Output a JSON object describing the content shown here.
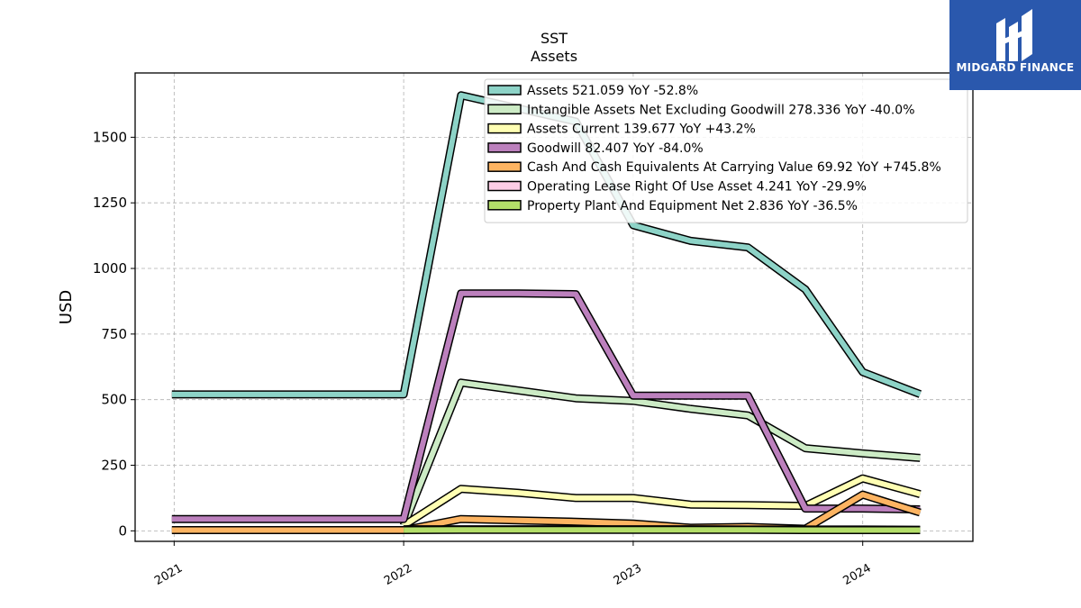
{
  "chart_data": {
    "type": "line",
    "title": "SST",
    "subtitle": "Assets",
    "ylabel": "USD",
    "xlabel": "",
    "xlim": [
      2020.83,
      2024.48
    ],
    "ylim": [
      -40,
      1745
    ],
    "x_ticks": [
      "2021",
      "2022",
      "2023",
      "2024"
    ],
    "x_tick_values": [
      2021,
      2022,
      2023,
      2024
    ],
    "y_ticks": [
      "0",
      "250",
      "500",
      "750",
      "1000",
      "1250",
      "1500"
    ],
    "y_tick_values": [
      0,
      250,
      500,
      750,
      1000,
      1250,
      1500
    ],
    "grid": true,
    "legend_position": "top-right",
    "series": [
      {
        "name": "Assets",
        "legend": "Assets  521.059 YoY -52.8%",
        "color": "#8dd3c7",
        "x": [
          2020.99,
          2022.0,
          2022.25,
          2022.75,
          2023.0,
          2023.25,
          2023.5,
          2023.75,
          2024.0,
          2024.25
        ],
        "y": [
          520,
          520,
          1660,
          1560,
          1165,
          1105,
          1080,
          920,
          605,
          521
        ]
      },
      {
        "name": "Intangible Assets Net Excluding Goodwill",
        "legend": "Intangible Assets Net Excluding Goodwill  278.336 YoY -40.0%",
        "color": "#ccebc5",
        "x": [
          2022.0,
          2022.25,
          2022.5,
          2022.75,
          2023.0,
          2023.25,
          2023.5,
          2023.75,
          2024.0,
          2024.25
        ],
        "y": [
          20,
          565,
          535,
          505,
          495,
          465,
          440,
          315,
          295,
          278
        ]
      },
      {
        "name": "Assets Current",
        "legend": "Assets Current  139.677 YoY +43.2%",
        "color": "#ffffb3",
        "x": [
          2022.0,
          2022.25,
          2022.5,
          2022.75,
          2023.0,
          2023.25,
          2023.5,
          2023.75,
          2024.0,
          2024.25
        ],
        "y": [
          20,
          160,
          145,
          125,
          125,
          100,
          98,
          95,
          200,
          140
        ]
      },
      {
        "name": "Goodwill",
        "legend": "Goodwill  82.407 YoY -84.0%",
        "color": "#bc80bd",
        "x": [
          2020.99,
          2022.0,
          2022.25,
          2022.5,
          2022.75,
          2023.0,
          2023.25,
          2023.5,
          2023.75,
          2024.0,
          2024.25
        ],
        "y": [
          45,
          45,
          905,
          905,
          902,
          515,
          515,
          515,
          85,
          85,
          82
        ]
      },
      {
        "name": "Cash And Cash Equivalents At Carrying Value",
        "legend": "Cash And Cash Equivalents At Carrying Value  69.92 YoY +745.8%",
        "color": "#fdb462",
        "x": [
          2020.99,
          2022.0,
          2022.25,
          2022.5,
          2022.75,
          2023.0,
          2023.25,
          2023.5,
          2023.75,
          2024.0,
          2024.25
        ],
        "y": [
          3,
          3,
          45,
          40,
          35,
          28,
          12,
          15,
          8,
          138,
          70
        ]
      },
      {
        "name": "Operating Lease Right Of Use Asset",
        "legend": "Operating Lease Right Of Use Asset  4.241 YoY -29.9%",
        "color": "#fccde5",
        "x": [
          2022.0,
          2022.25,
          2022.5,
          2022.75,
          2023.0,
          2023.25,
          2023.5,
          2023.75,
          2024.0,
          2024.25
        ],
        "y": [
          6,
          6,
          6,
          6,
          6,
          6,
          5,
          5,
          5,
          4.241
        ]
      },
      {
        "name": "Property Plant And Equipment Net",
        "legend": "Property Plant And Equipment Net  2.836 YoY -36.5%",
        "color": "#b3de69",
        "x": [
          2022.0,
          2022.25,
          2022.5,
          2022.75,
          2023.0,
          2023.25,
          2023.5,
          2023.75,
          2024.0,
          2024.25
        ],
        "y": [
          3,
          4,
          4,
          4,
          4,
          4,
          4,
          3,
          3,
          2.836
        ]
      }
    ]
  },
  "logo": {
    "text": "MIDGARD FINANCE",
    "background": "#2a58ad"
  }
}
